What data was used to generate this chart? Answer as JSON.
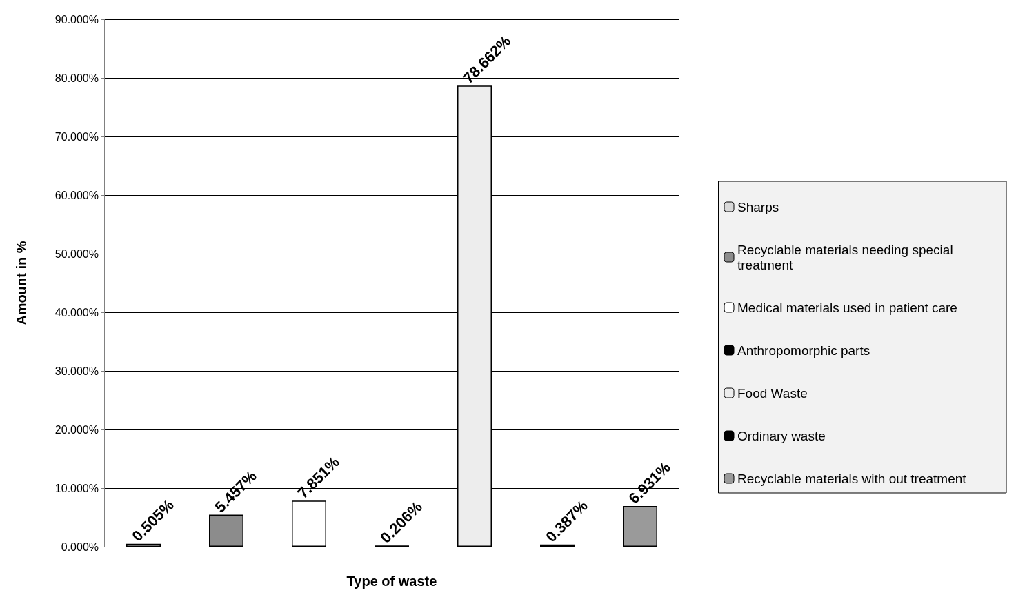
{
  "chart_data": {
    "type": "bar",
    "xlabel": "Type of waste",
    "ylabel": "Amount in %",
    "categories": [
      null
    ],
    "series": [
      {
        "name": "Sharps",
        "color": "#d9d9d9",
        "values": [
          0.505
        ],
        "value_labels": [
          "0.505%"
        ]
      },
      {
        "name": "Recyclable materials needing special treatment",
        "color": "#8c8c8c",
        "values": [
          5.457
        ],
        "value_labels": [
          "5.457%"
        ]
      },
      {
        "name": "Medical materials used in patient care",
        "color": "#ffffff",
        "values": [
          7.851
        ],
        "value_labels": [
          "7.851%"
        ]
      },
      {
        "name": "Anthropomorphic parts",
        "color": "#000000",
        "values": [
          0.206
        ],
        "value_labels": [
          "0.206%"
        ]
      },
      {
        "name": "Food Waste",
        "color": "#ededed",
        "values": [
          78.662
        ],
        "value_labels": [
          "78.662%"
        ]
      },
      {
        "name": "Ordinary waste",
        "color": "#000000",
        "values": [
          0.387
        ],
        "value_labels": [
          "0.387%"
        ]
      },
      {
        "name": "Recyclable materials with out treatment",
        "color": "#9a9a9a",
        "values": [
          6.931
        ],
        "value_labels": [
          "6.931%"
        ]
      }
    ],
    "ylim": [
      0,
      90
    ],
    "yticks": [
      {
        "value": 0,
        "label": "0.000%"
      },
      {
        "value": 10,
        "label": "10.000%"
      },
      {
        "value": 20,
        "label": "20.000%"
      },
      {
        "value": 30,
        "label": "30.000%"
      },
      {
        "value": 40,
        "label": "40.000%"
      },
      {
        "value": 50,
        "label": "50.000%"
      },
      {
        "value": 60,
        "label": "60.000%"
      },
      {
        "value": 70,
        "label": "70.000%"
      },
      {
        "value": 80,
        "label": "80.000%"
      },
      {
        "value": 90,
        "label": "90.000%"
      }
    ],
    "grid": "y",
    "legend": "right"
  }
}
